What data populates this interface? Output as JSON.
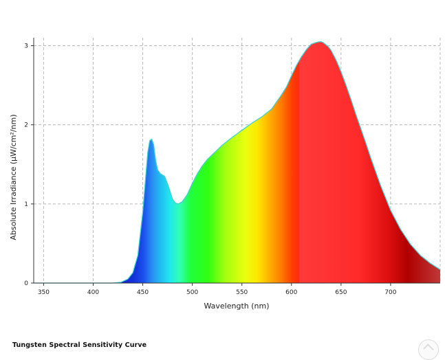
{
  "chart_data": {
    "type": "area",
    "title": "",
    "xlabel": "Wavelength (nm)",
    "ylabel": "Absolute Irradiance (µW/cm²/nm)",
    "xlim": [
      340,
      750
    ],
    "ylim": [
      0,
      3.1
    ],
    "x_ticks": [
      350,
      400,
      450,
      500,
      550,
      600,
      650,
      700
    ],
    "y_ticks": [
      0,
      1,
      2,
      3
    ],
    "grid": true,
    "fill": "visible-spectrum gradient",
    "outline_color": "#40d0d0",
    "series": [
      {
        "x": [
          340,
          420,
          428,
          435,
          440,
          445,
          450,
          453,
          455,
          457,
          459,
          461,
          463,
          465,
          468,
          472,
          476,
          480,
          483,
          486,
          490,
          495,
          500,
          505,
          510,
          515,
          520,
          530,
          540,
          550,
          560,
          570,
          580,
          590,
          595,
          600,
          605,
          610,
          615,
          620,
          625,
          628,
          630,
          632,
          634,
          637,
          640,
          645,
          650,
          655,
          660,
          665,
          670,
          675,
          680,
          690,
          700,
          710,
          720,
          730,
          740,
          750
        ],
        "y": [
          0,
          0,
          0.01,
          0.05,
          0.13,
          0.35,
          0.9,
          1.35,
          1.65,
          1.8,
          1.82,
          1.75,
          1.55,
          1.43,
          1.38,
          1.35,
          1.22,
          1.06,
          1.01,
          1.0,
          1.03,
          1.12,
          1.26,
          1.38,
          1.48,
          1.56,
          1.62,
          1.74,
          1.84,
          1.93,
          2.02,
          2.1,
          2.2,
          2.38,
          2.48,
          2.62,
          2.75,
          2.86,
          2.95,
          3.02,
          3.04,
          3.05,
          3.05,
          3.04,
          3.02,
          2.99,
          2.94,
          2.82,
          2.67,
          2.5,
          2.32,
          2.13,
          1.95,
          1.77,
          1.58,
          1.23,
          0.92,
          0.68,
          0.49,
          0.35,
          0.25,
          0.17
        ]
      }
    ]
  },
  "caption": "Tungsten Spectral Sensitivity Curve",
  "watermark_icon": "circle-logo-icon"
}
